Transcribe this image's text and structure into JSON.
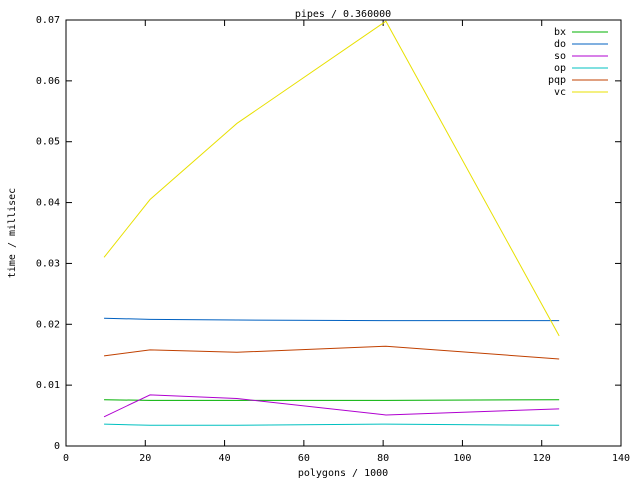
{
  "chart_data": {
    "type": "line",
    "title": "pipes / 0.360000",
    "x_label": "polygons / 1000",
    "y_label": "time / millisec",
    "x": [
      9.6,
      21.2,
      43.1,
      80.7,
      124.4
    ],
    "series": [
      {
        "name": "bx",
        "color": "#00b000",
        "values": [
          0.0076,
          0.0075,
          0.0075,
          0.0075,
          0.0076
        ]
      },
      {
        "name": "do",
        "color": "#0060c0",
        "values": [
          0.021,
          0.0208,
          0.0207,
          0.0206,
          0.0206
        ]
      },
      {
        "name": "so",
        "color": "#b000d0",
        "values": [
          0.0048,
          0.0084,
          0.0078,
          0.0051,
          0.0061
        ]
      },
      {
        "name": "op",
        "color": "#00c0c0",
        "values": [
          0.0036,
          0.0034,
          0.0034,
          0.0036,
          0.0034
        ]
      },
      {
        "name": "pqp",
        "color": "#c04000",
        "values": [
          0.0148,
          0.0158,
          0.0154,
          0.0164,
          0.0143
        ]
      },
      {
        "name": "vc",
        "color": "#e8e000",
        "values": [
          0.031,
          0.0405,
          0.053,
          0.0698,
          0.0181
        ]
      }
    ],
    "xlim": [
      0,
      140
    ],
    "xticks": [
      0,
      20,
      40,
      60,
      80,
      100,
      120,
      140
    ],
    "ylim": [
      0,
      0.07
    ],
    "yticks": [
      0,
      0.01,
      0.02,
      0.03,
      0.04,
      0.05,
      0.06,
      0.07
    ],
    "legend": "top-right"
  }
}
